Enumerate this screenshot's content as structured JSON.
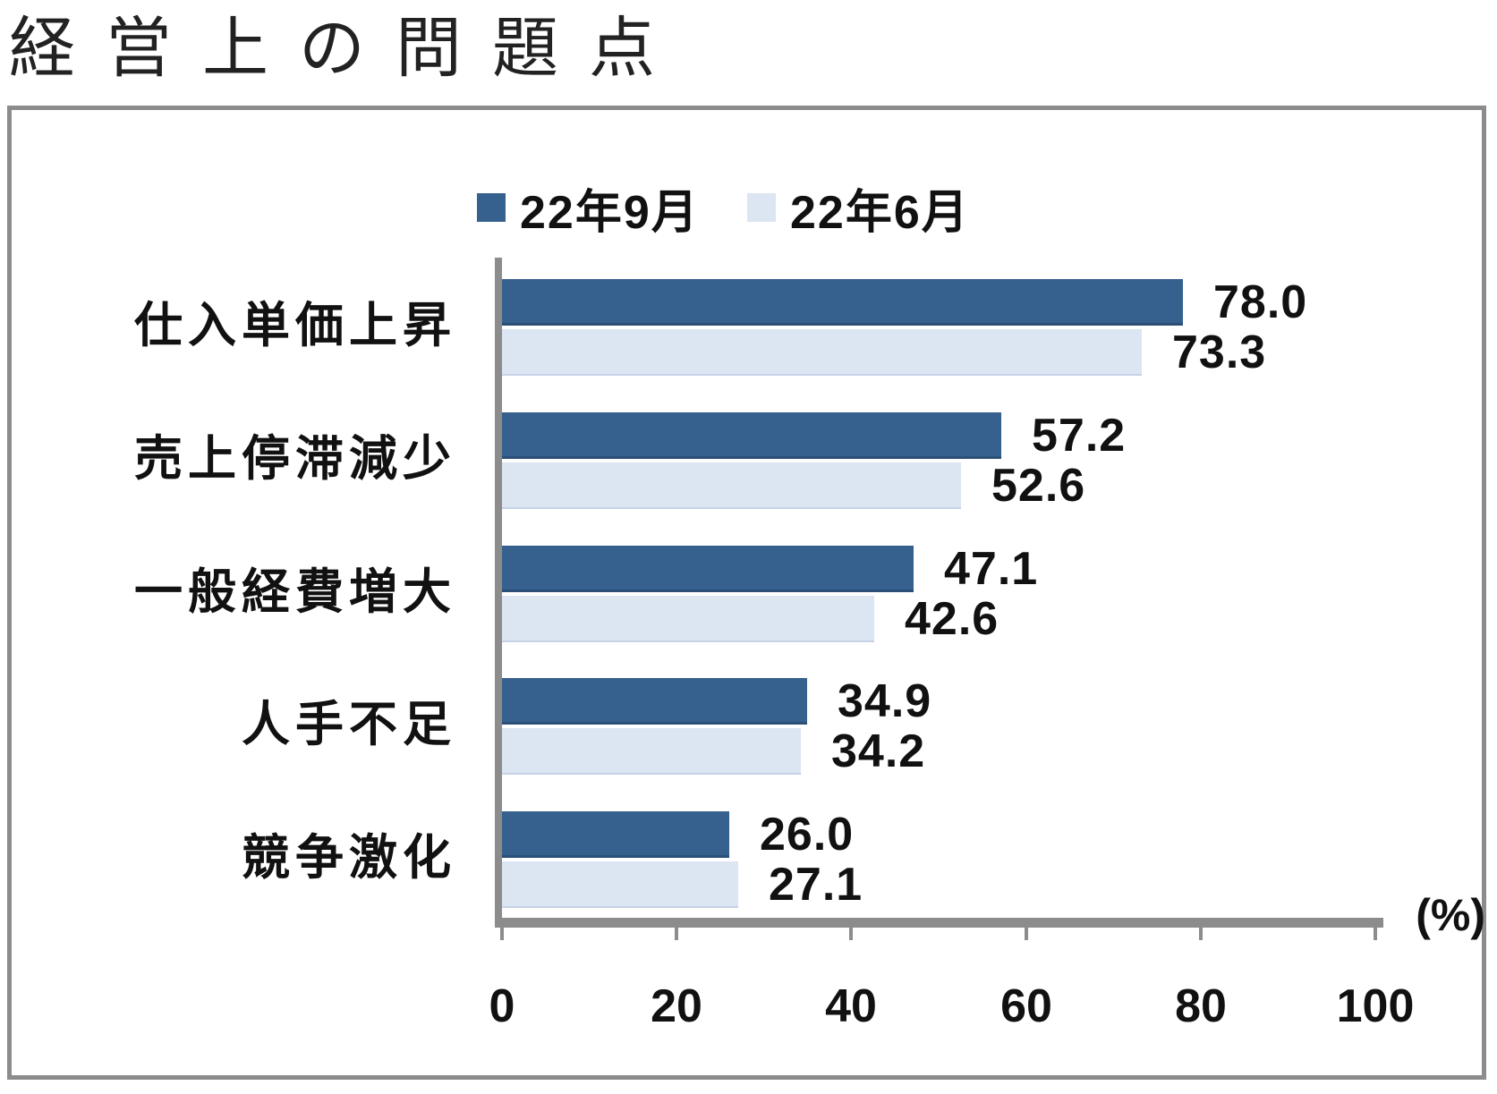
{
  "title": "経営上の問題点",
  "chart_data": {
    "type": "bar",
    "orientation": "horizontal",
    "title": "経営上の問題点",
    "categories": [
      "仕入単価上昇",
      "売上停滞減少",
      "一般経費増大",
      "人手不足",
      "競争激化"
    ],
    "series": [
      {
        "name": "22年9月",
        "color": "#36618E",
        "values": [
          78.0,
          57.2,
          47.1,
          34.9,
          26.0
        ]
      },
      {
        "name": "22年6月",
        "color": "#DCE5F2",
        "values": [
          73.3,
          52.6,
          42.6,
          34.2,
          27.1
        ]
      }
    ],
    "x_ticks": [
      0,
      20,
      40,
      60,
      80,
      100
    ],
    "xlim": [
      0,
      100
    ],
    "unit_label": "(%)",
    "value_format": "one_decimal",
    "legend_position": "top",
    "grid": false,
    "axis_color": "#8C8C8C",
    "frame_border_color": "#8C8C8C",
    "text_color": "#111111"
  }
}
